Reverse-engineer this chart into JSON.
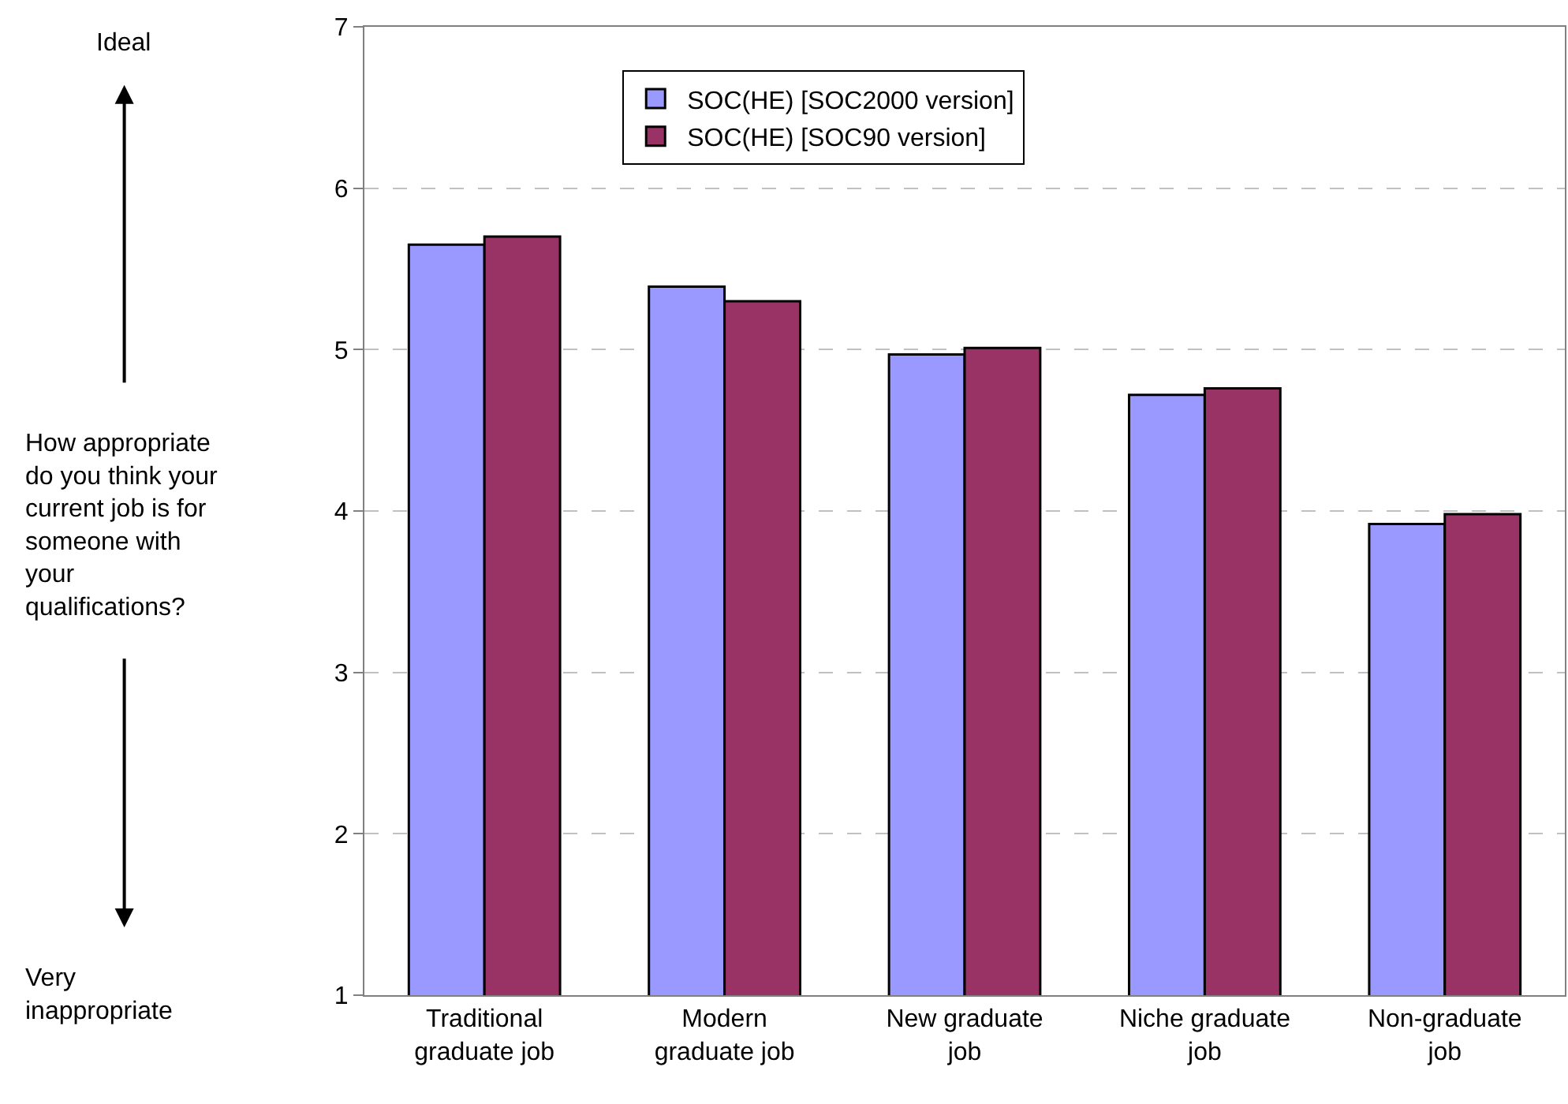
{
  "chart_data": {
    "type": "bar",
    "categories": [
      "Traditional\ngraduate job",
      "Modern\ngraduate job",
      "New graduate\njob",
      "Niche graduate\njob",
      "Non-graduate\njob"
    ],
    "series": [
      {
        "name": "SOC(HE) [SOC2000 version]",
        "color": "#9999ff",
        "values": [
          5.65,
          5.39,
          4.97,
          4.72,
          3.92
        ]
      },
      {
        "name": "SOC(HE) [SOC90 version]",
        "color": "#993366",
        "values": [
          5.7,
          5.3,
          5.01,
          4.76,
          3.98
        ]
      }
    ],
    "annotations": [
      "Ideal",
      "How appropriate\ndo you think your\ncurrent job is for\nsomeone with\nyour\nqualifications?",
      "Very\ninappropriate"
    ],
    "ylim": [
      1,
      7
    ],
    "yticks": [
      1,
      2,
      3,
      4,
      5,
      6,
      7
    ],
    "grid": "y",
    "legend": "top"
  }
}
